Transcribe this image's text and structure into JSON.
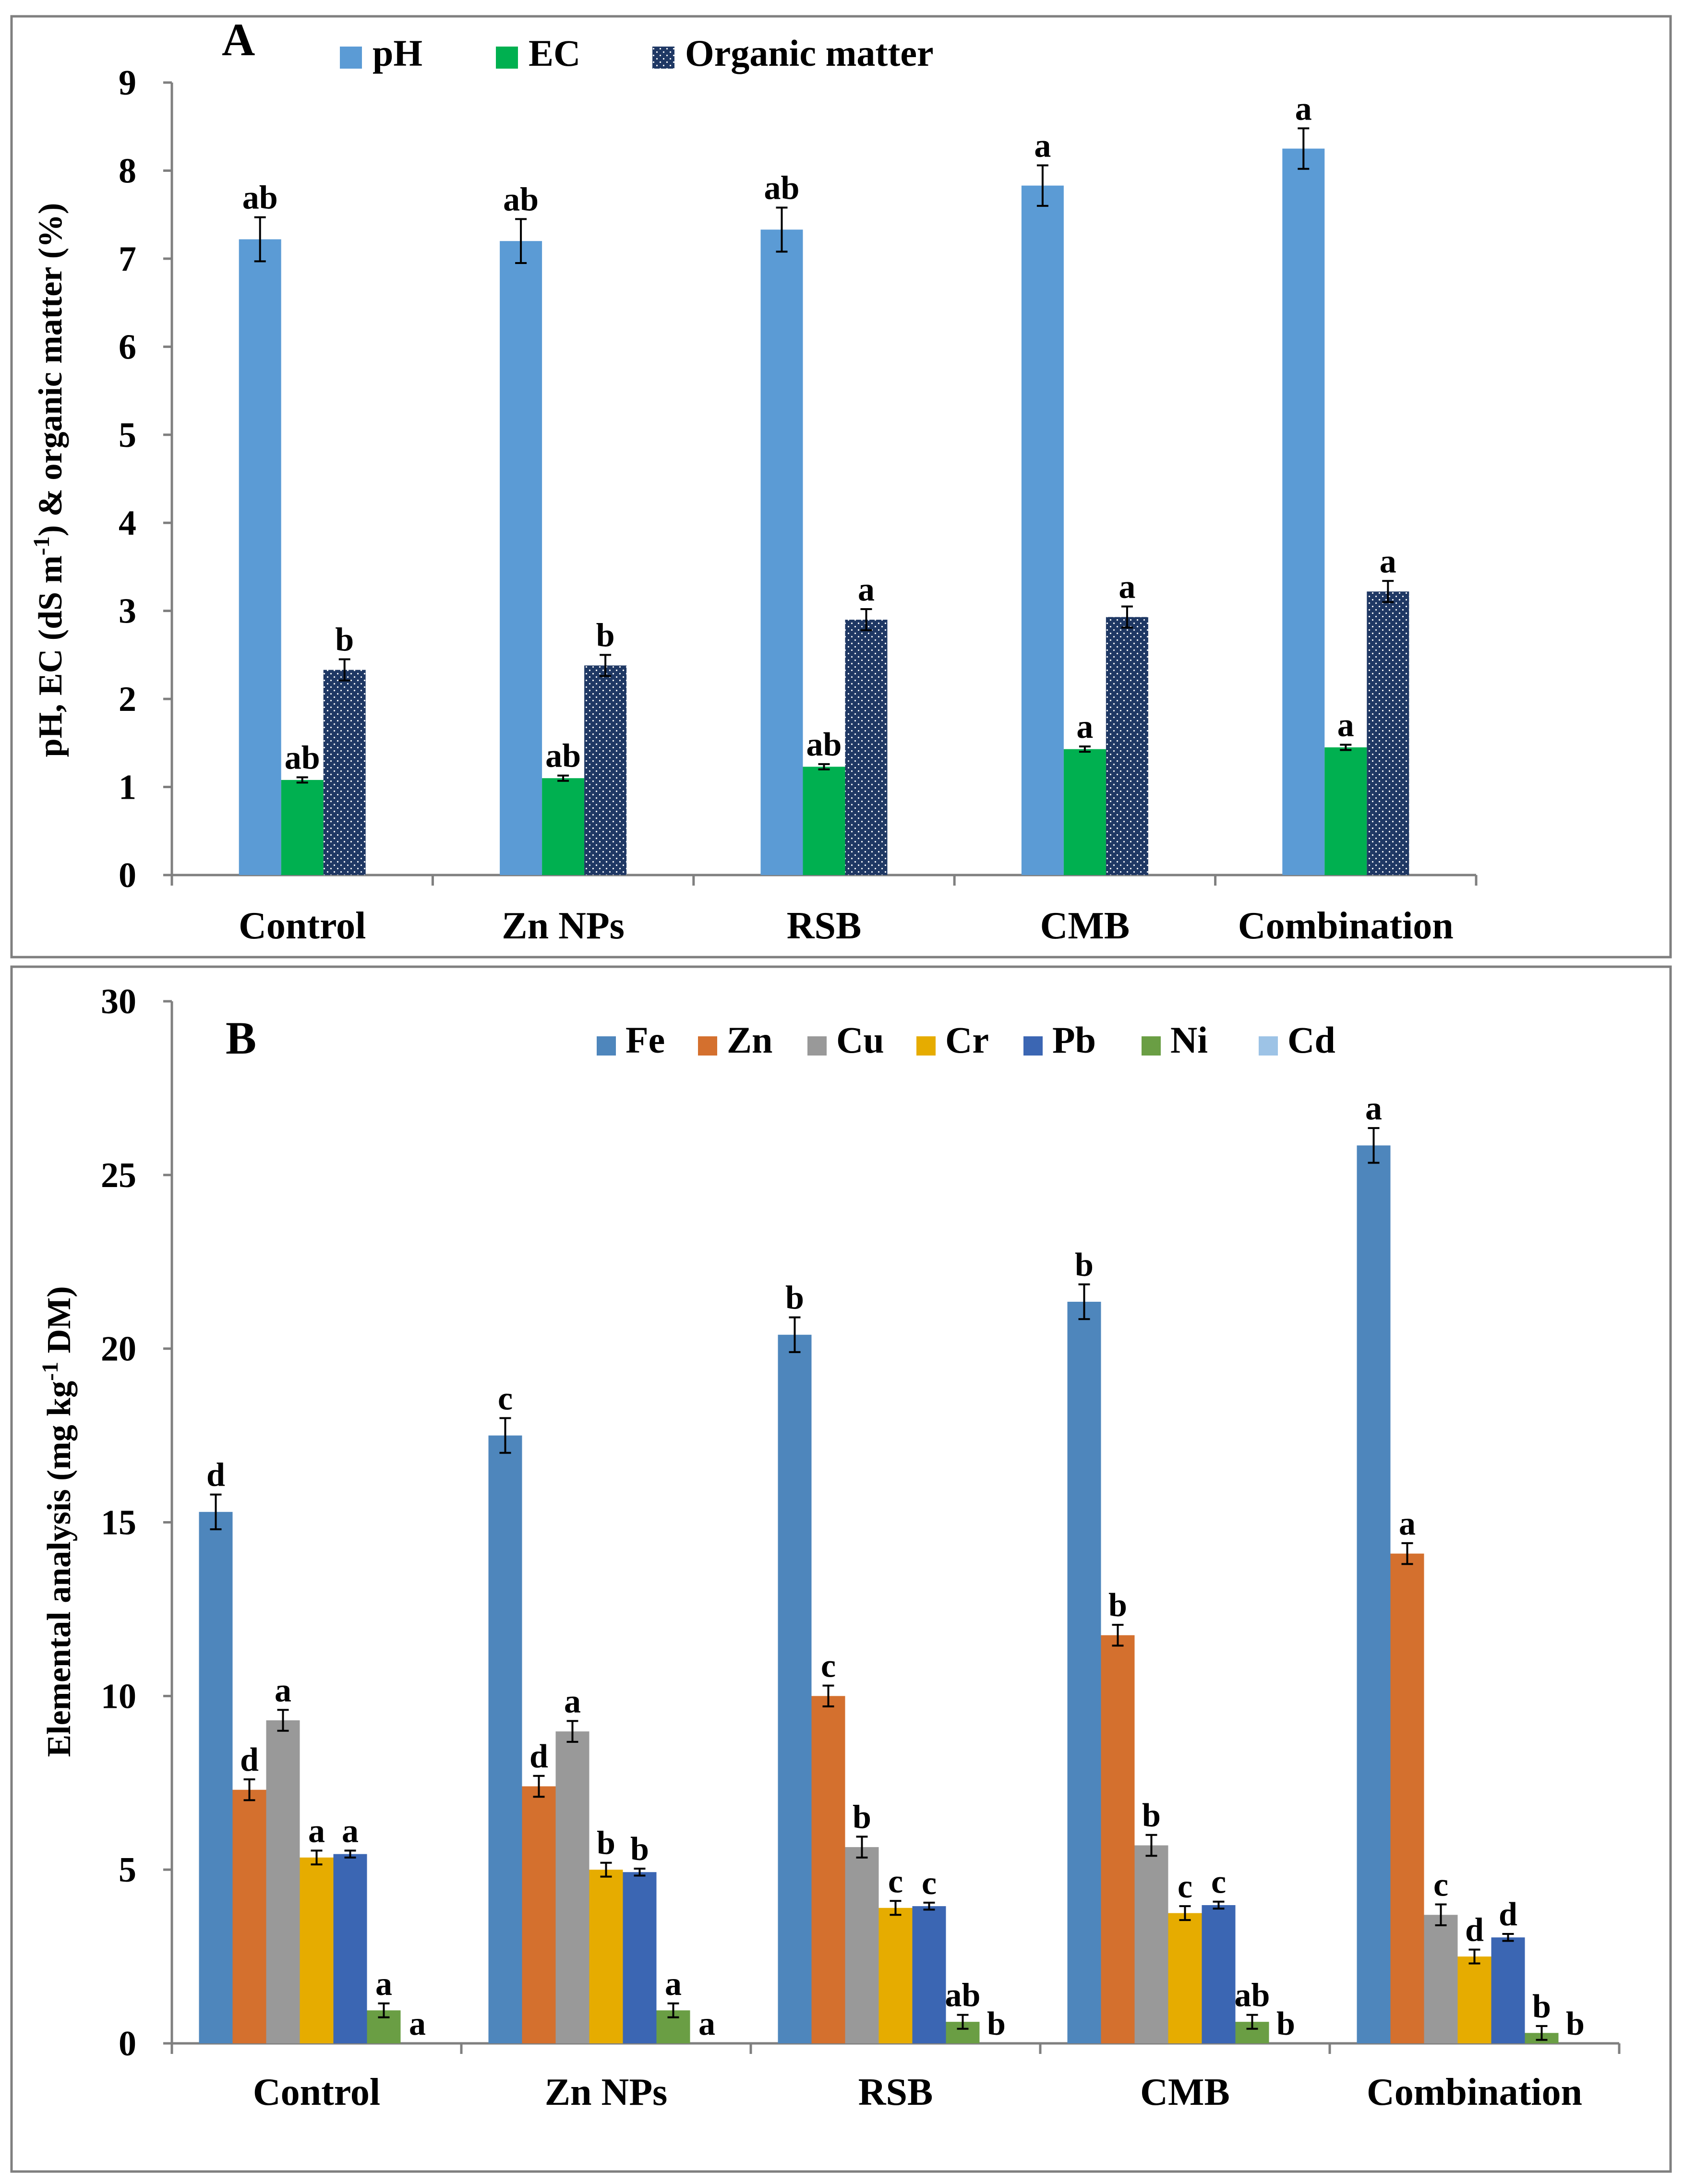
{
  "chart_data": [
    {
      "type": "bar",
      "panel_label": "A",
      "title": "",
      "xlabel": "",
      "ylabel": "pH, EC (dS m-1) & organic matter (%)",
      "ylabel_parts": {
        "before": "pH, EC (dS m",
        "sup": "-1",
        "after": ") & organic matter (%)"
      },
      "ylim": [
        0,
        9
      ],
      "yticks": [
        0,
        1,
        2,
        3,
        4,
        5,
        6,
        7,
        8,
        9
      ],
      "grid": false,
      "legend_position": "top",
      "categories": [
        "Control",
        "Zn NPs",
        "RSB",
        "CMB",
        "Combination"
      ],
      "series": [
        {
          "name": "pH",
          "color": "#5b9bd5",
          "pattern": "solid",
          "values": [
            7.22,
            7.2,
            7.33,
            7.83,
            8.25
          ],
          "errors": [
            0.25,
            0.25,
            0.25,
            0.23,
            0.23
          ],
          "letters": [
            "ab",
            "ab",
            "ab",
            "a",
            "a"
          ]
        },
        {
          "name": "EC",
          "color": "#00b050",
          "pattern": "solid",
          "values": [
            1.08,
            1.1,
            1.23,
            1.43,
            1.45
          ],
          "errors": [
            0.03,
            0.03,
            0.03,
            0.03,
            0.03
          ],
          "letters": [
            "ab",
            "ab",
            "ab",
            "a",
            "a"
          ]
        },
        {
          "name": "Organic matter",
          "color": "#1f3864",
          "pattern": "dotted",
          "values": [
            2.33,
            2.38,
            2.9,
            2.93,
            3.22
          ],
          "errors": [
            0.12,
            0.12,
            0.12,
            0.12,
            0.12
          ],
          "letters": [
            "b",
            "b",
            "a",
            "a",
            "a"
          ]
        }
      ]
    },
    {
      "type": "bar",
      "panel_label": "B",
      "title": "",
      "xlabel": "",
      "ylabel": "Elemental analysis (mg kg-1 DM)",
      "ylabel_parts": {
        "before": "Elemental analysis (mg kg",
        "sup": "-1",
        "after": " DM)"
      },
      "ylim": [
        0,
        30
      ],
      "yticks": [
        0,
        5,
        10,
        15,
        20,
        25,
        30
      ],
      "grid": false,
      "legend_position": "top",
      "categories": [
        "Control",
        "Zn NPs",
        "RSB",
        "CMB",
        "Combination"
      ],
      "series": [
        {
          "name": "Fe",
          "color": "#4e86bc",
          "values": [
            15.3,
            17.5,
            20.4,
            21.35,
            25.85
          ],
          "errors": [
            0.5,
            0.5,
            0.5,
            0.5,
            0.5
          ],
          "letters": [
            "d",
            "c",
            "b",
            "b",
            "a"
          ]
        },
        {
          "name": "Zn",
          "color": "#d4702e",
          "values": [
            7.3,
            7.4,
            10.0,
            11.75,
            14.1
          ],
          "errors": [
            0.3,
            0.3,
            0.3,
            0.3,
            0.3
          ],
          "letters": [
            "d",
            "d",
            "c",
            "b",
            "a"
          ]
        },
        {
          "name": "Cu",
          "color": "#999999",
          "values": [
            9.3,
            8.98,
            5.65,
            5.7,
            3.7
          ],
          "errors": [
            0.3,
            0.3,
            0.3,
            0.3,
            0.3
          ],
          "letters": [
            "a",
            "a",
            "b",
            "b",
            "c"
          ]
        },
        {
          "name": "Cr",
          "color": "#e6ac00",
          "values": [
            5.35,
            5.0,
            3.9,
            3.75,
            2.5
          ],
          "errors": [
            0.2,
            0.2,
            0.2,
            0.2,
            0.2
          ],
          "letters": [
            "a",
            "b",
            "c",
            "c",
            "d"
          ]
        },
        {
          "name": "Pb",
          "color": "#3b66b3",
          "values": [
            5.45,
            4.93,
            3.95,
            3.98,
            3.05
          ],
          "errors": [
            0.1,
            0.1,
            0.1,
            0.1,
            0.1
          ],
          "letters": [
            "a",
            "b",
            "c",
            "c",
            "d"
          ]
        },
        {
          "name": "Ni",
          "color": "#6a9e44",
          "values": [
            0.95,
            0.95,
            0.62,
            0.62,
            0.3
          ],
          "errors": [
            0.2,
            0.2,
            0.2,
            0.2,
            0.2
          ],
          "letters": [
            "a",
            "a",
            "ab",
            "ab",
            "b"
          ]
        },
        {
          "name": "Cd",
          "color": "#9dc3e6",
          "values": [
            0,
            0,
            0,
            0,
            0
          ],
          "errors": [
            0,
            0,
            0,
            0,
            0
          ],
          "letters": [
            "a",
            "a",
            "b",
            "b",
            "b"
          ]
        }
      ]
    }
  ]
}
